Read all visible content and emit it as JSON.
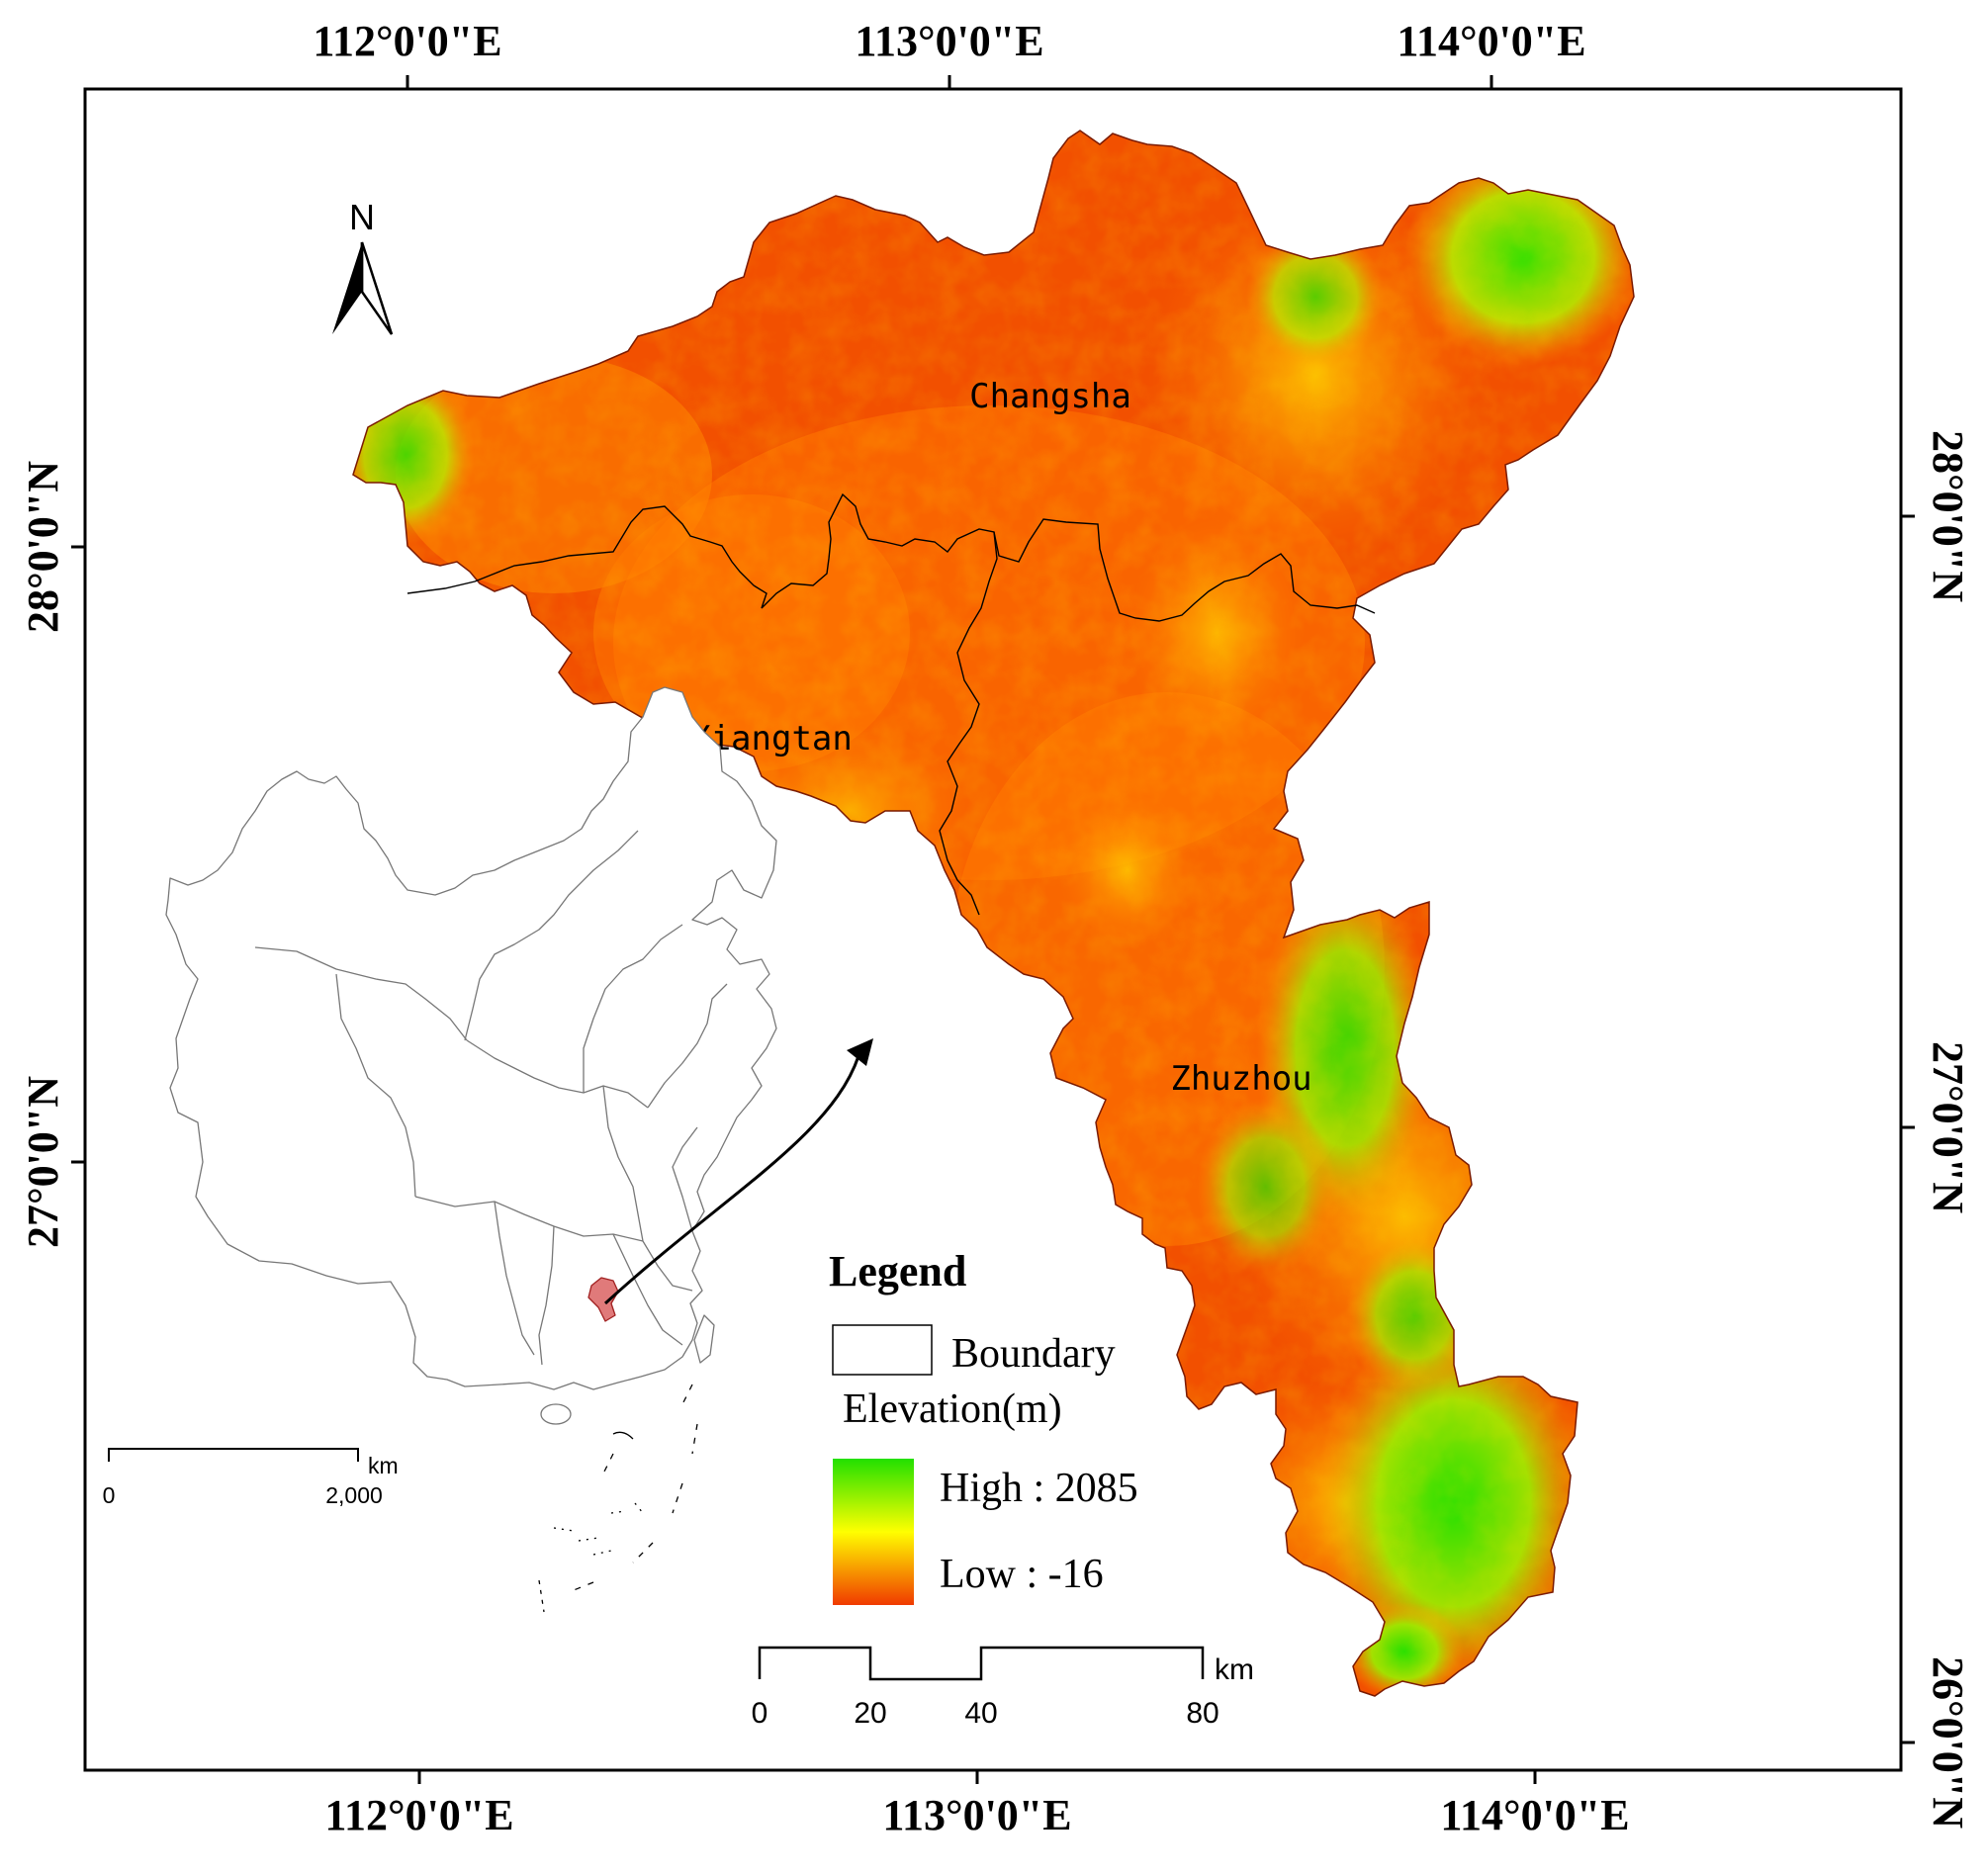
{
  "top_axis": {
    "labels": [
      "112°0'0\"E",
      "113°0'0\"E",
      "114°0'0\"E"
    ]
  },
  "bottom_axis": {
    "labels": [
      "112°0'0\"E",
      "113°0'0\"E",
      "114°0'0\"E"
    ]
  },
  "left_axis": {
    "labels": [
      "28°0'0\"N",
      "27°0'0\"N"
    ]
  },
  "right_axis": {
    "labels": [
      "28°0'0\"N",
      "27°0'0\"N",
      "26°0'0\"N"
    ]
  },
  "cities": [
    {
      "name": "Changsha"
    },
    {
      "name": "Xiangtan"
    },
    {
      "name": "Zhuzhou"
    }
  ],
  "north_arrow": {
    "label": "N",
    "icon": "north-arrow-icon"
  },
  "legend": {
    "title": "Legend",
    "boundary_label": "Boundary",
    "elevation_label": "Elevation(m)",
    "high_label": "High : 2085",
    "low_label": "Low : -16",
    "high_color": "#22e000",
    "mid_color": "#ffff00",
    "low_color": "#f03a00"
  },
  "scale_bar": {
    "unit": "km",
    "ticks": [
      "0",
      "20",
      "40",
      "80"
    ]
  },
  "inset_scale_bar": {
    "unit": "km",
    "ticks": [
      "0",
      "2,000"
    ]
  },
  "colors": {
    "terrain_low": "#f24400",
    "terrain_mid": "#ff8c00",
    "terrain_high": "#33e000",
    "boundary": "#000000"
  }
}
